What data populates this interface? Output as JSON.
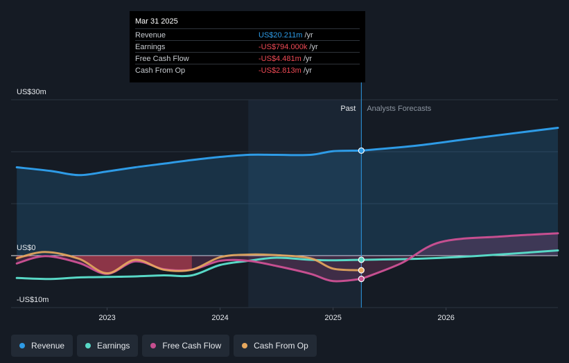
{
  "tooltip": {
    "date": "Mar 31 2025",
    "rows": [
      {
        "label": "Revenue",
        "value": "US$20.211m",
        "unit": "/yr",
        "color": "#2e9be6"
      },
      {
        "label": "Earnings",
        "value": "-US$794.000k",
        "unit": "/yr",
        "color": "#ef4a55"
      },
      {
        "label": "Free Cash Flow",
        "value": "-US$4.481m",
        "unit": "/yr",
        "color": "#ef4a55"
      },
      {
        "label": "Cash From Op",
        "value": "-US$2.813m",
        "unit": "/yr",
        "color": "#ef4a55"
      }
    ]
  },
  "chart_data": {
    "type": "line",
    "ylim": [
      -10,
      30
    ],
    "xlim": [
      2022.15,
      2026.99
    ],
    "y_tick_labels": [
      {
        "label": "US$30m",
        "value": 30
      },
      {
        "label": "US$0",
        "value": 0
      },
      {
        "label": "-US$10m",
        "value": -10
      }
    ],
    "x_ticks": [
      {
        "label": "2023",
        "value": 2023.0
      },
      {
        "label": "2024",
        "value": 2024.0
      },
      {
        "label": "2025",
        "value": 2025.0
      },
      {
        "label": "2026",
        "value": 2026.0
      }
    ],
    "past_label": "Past",
    "forecast_label": "Analysts Forecasts",
    "past_start": 2024.25,
    "divider_x": 2025.25,
    "series": [
      {
        "name": "Revenue",
        "color": "#2e9be6",
        "past": [
          [
            2022.2,
            17.0
          ],
          [
            2022.5,
            16.3
          ],
          [
            2022.75,
            15.5
          ],
          [
            2023.0,
            16.2
          ],
          [
            2023.25,
            17.0
          ],
          [
            2023.5,
            17.7
          ],
          [
            2023.75,
            18.4
          ],
          [
            2024.0,
            19.0
          ],
          [
            2024.25,
            19.4
          ],
          [
            2024.5,
            19.4
          ],
          [
            2024.8,
            19.4
          ],
          [
            2025.0,
            20.1
          ],
          [
            2025.25,
            20.211
          ]
        ],
        "forecast": [
          [
            2025.25,
            20.211
          ],
          [
            2025.75,
            21.2
          ],
          [
            2026.25,
            22.6
          ],
          [
            2026.99,
            24.6
          ]
        ]
      },
      {
        "name": "Earnings",
        "color": "#58d8c6",
        "past": [
          [
            2022.2,
            -4.3
          ],
          [
            2022.5,
            -4.5
          ],
          [
            2022.75,
            -4.2
          ],
          [
            2023.0,
            -4.1
          ],
          [
            2023.25,
            -4.0
          ],
          [
            2023.5,
            -3.8
          ],
          [
            2023.75,
            -3.8
          ],
          [
            2024.0,
            -1.8
          ],
          [
            2024.25,
            -1.0
          ],
          [
            2024.5,
            -0.4
          ],
          [
            2024.8,
            -0.8
          ],
          [
            2025.0,
            -0.9
          ],
          [
            2025.25,
            -0.794
          ]
        ],
        "forecast": [
          [
            2025.25,
            -0.794
          ],
          [
            2025.75,
            -0.6
          ],
          [
            2026.25,
            -0.1
          ],
          [
            2026.99,
            1.0
          ]
        ]
      },
      {
        "name": "Free Cash Flow",
        "color": "#c64f90",
        "past": [
          [
            2022.2,
            -1.5
          ],
          [
            2022.45,
            -0.1
          ],
          [
            2022.75,
            -1.4
          ],
          [
            2023.0,
            -3.5
          ],
          [
            2023.25,
            -1.1
          ],
          [
            2023.5,
            -2.6
          ],
          [
            2023.75,
            -2.7
          ],
          [
            2024.0,
            -1.0
          ],
          [
            2024.25,
            -1.0
          ],
          [
            2024.5,
            -2.0
          ],
          [
            2024.8,
            -3.5
          ],
          [
            2025.0,
            -4.9
          ],
          [
            2025.25,
            -4.481
          ]
        ],
        "forecast": [
          [
            2025.25,
            -4.481
          ],
          [
            2025.6,
            -1.5
          ],
          [
            2025.95,
            2.6
          ],
          [
            2026.5,
            3.7
          ],
          [
            2026.99,
            4.3
          ]
        ]
      },
      {
        "name": "Cash From Op",
        "color": "#e7a85e",
        "past": [
          [
            2022.2,
            -0.5
          ],
          [
            2022.45,
            0.7
          ],
          [
            2022.75,
            -0.6
          ],
          [
            2023.0,
            -3.4
          ],
          [
            2023.25,
            -0.8
          ],
          [
            2023.5,
            -2.7
          ],
          [
            2023.75,
            -2.7
          ],
          [
            2024.0,
            -0.3
          ],
          [
            2024.25,
            0.2
          ],
          [
            2024.5,
            0.1
          ],
          [
            2024.8,
            -0.5
          ],
          [
            2025.0,
            -2.5
          ],
          [
            2025.25,
            -2.813
          ]
        ],
        "forecast": []
      }
    ]
  },
  "legend": [
    {
      "label": "Revenue",
      "color": "#2e9be6"
    },
    {
      "label": "Earnings",
      "color": "#58d8c6"
    },
    {
      "label": "Free Cash Flow",
      "color": "#c64f90"
    },
    {
      "label": "Cash From Op",
      "color": "#e7a85e"
    }
  ]
}
